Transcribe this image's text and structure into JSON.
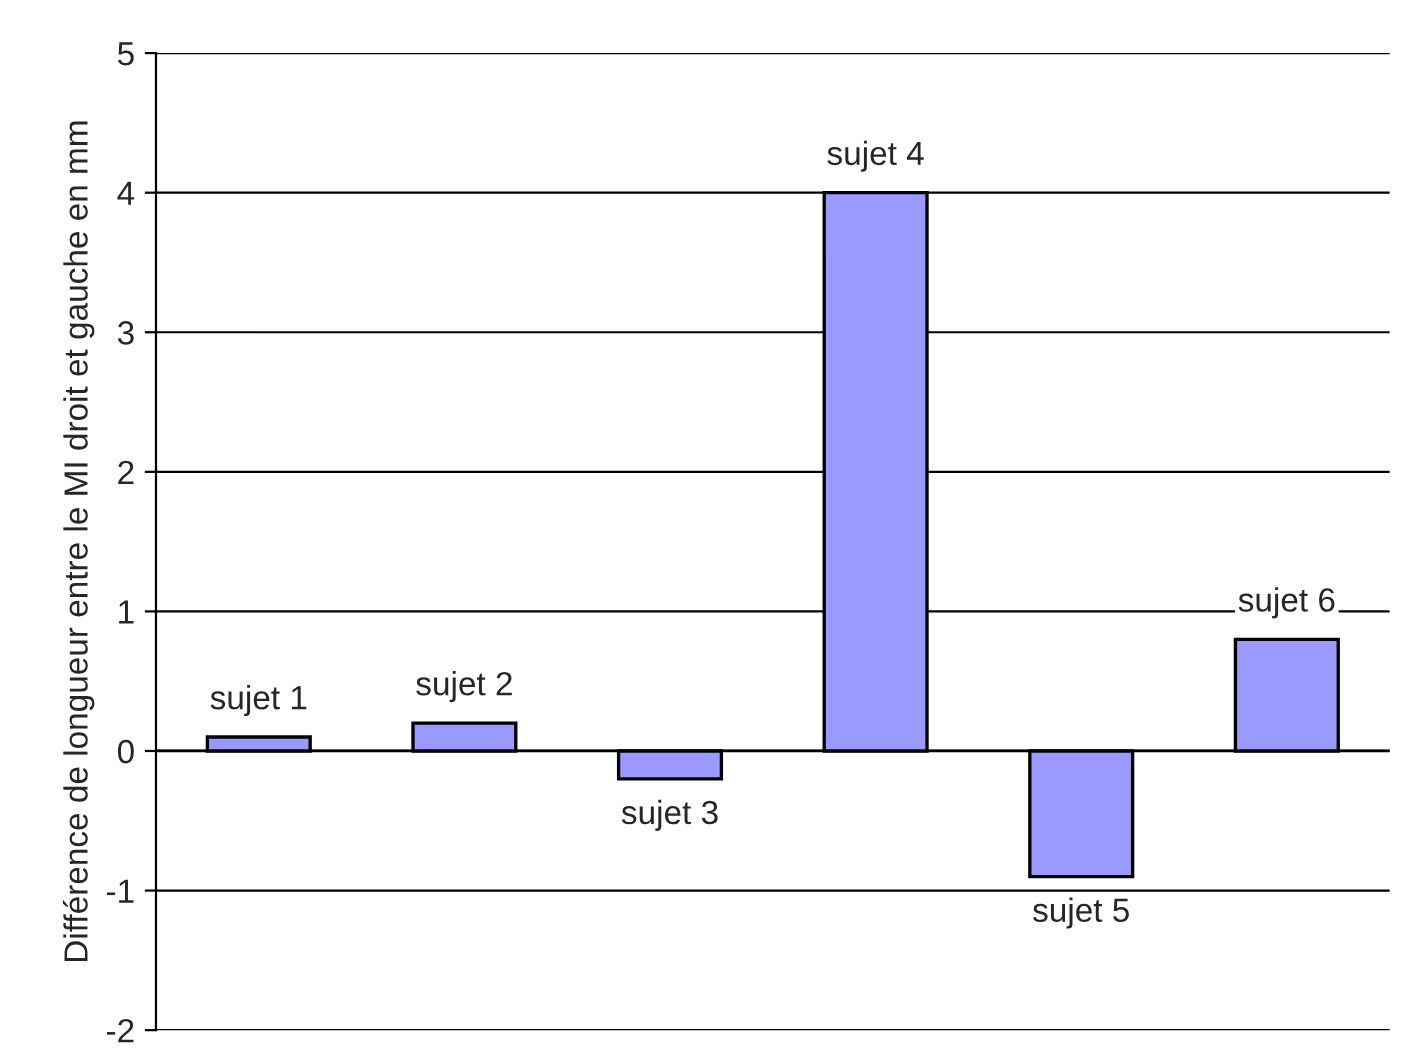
{
  "chart_data": {
    "type": "bar",
    "ylabel": "Différence de longueur entre le MI droit et gauche en mm",
    "categories": [
      "sujet 1",
      "sujet 2",
      "sujet 3",
      "sujet 4",
      "sujet 5",
      "sujet 6"
    ],
    "values": [
      0.1,
      0.2,
      -0.2,
      4.0,
      -0.9,
      0.8
    ],
    "color": "#9999ff",
    "ylim": [
      -2,
      5
    ],
    "yticks": [
      -2,
      -1,
      0,
      1,
      2,
      3,
      4,
      5
    ],
    "grid": "y"
  }
}
